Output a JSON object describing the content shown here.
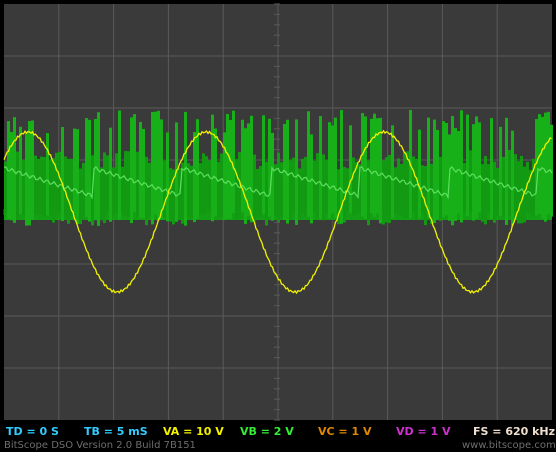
{
  "status": {
    "td": "TD = 0 S",
    "tb": "TB = 5 mS",
    "va": "VA = 10 V",
    "vb": "VB = 2 V",
    "vc": "VC = 1 V",
    "vd": "VD = 1 V",
    "fs": "FS = 620 kHz"
  },
  "footer": {
    "version": "BitScope DSO Version 2.0 Build 7B151",
    "url": "www.bitscope.com"
  }
}
